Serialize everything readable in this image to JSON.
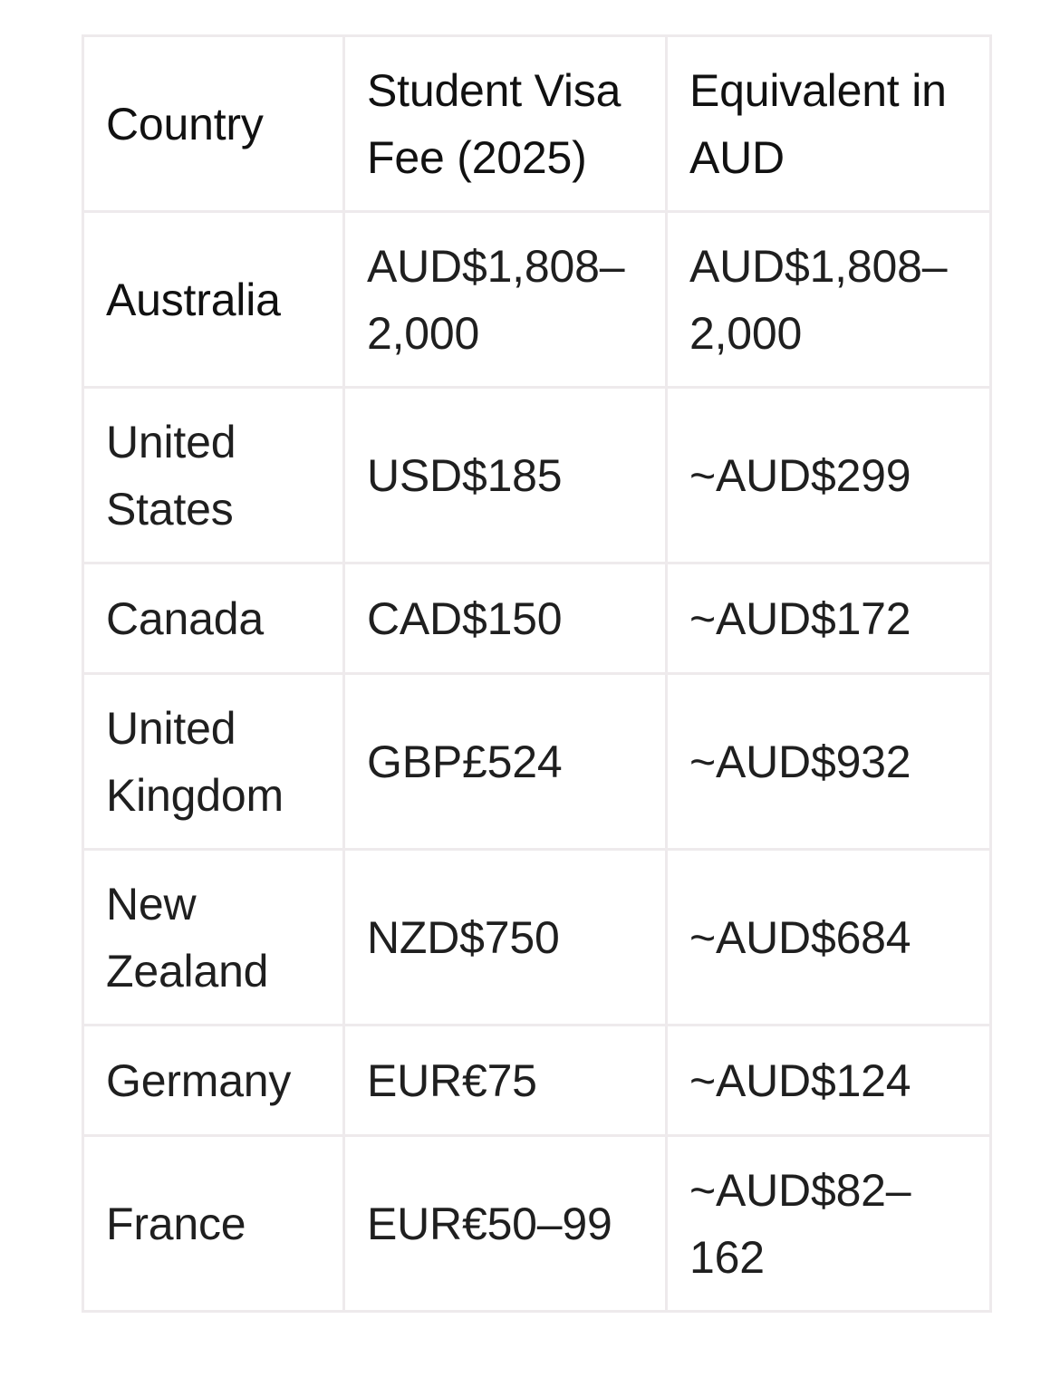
{
  "table": {
    "headers": [
      "Country",
      "Student Visa Fee (2025)",
      "Equivalent in AUD"
    ],
    "rows": [
      {
        "country": "Australia",
        "fee": "AUD$1,808–2,000",
        "aud": "AUD$1,808–2,000"
      },
      {
        "country": "United States",
        "fee": "USD$185",
        "aud": "~AUD$299"
      },
      {
        "country": "Canada",
        "fee": "CAD$150",
        "aud": "~AUD$172"
      },
      {
        "country": "United Kingdom",
        "fee": "GBP£524",
        "aud": "~AUD$932"
      },
      {
        "country": "New Zealand",
        "fee": "NZD$750",
        "aud": "~AUD$684"
      },
      {
        "country": "Germany",
        "fee": "EUR€75",
        "aud": "~AUD$124"
      },
      {
        "country": "France",
        "fee": "EUR€50–99",
        "aud": "~AUD$82–162"
      }
    ]
  },
  "colors": {
    "border": "#eeeaec",
    "text": "#1f1f1f",
    "background": "#ffffff"
  }
}
